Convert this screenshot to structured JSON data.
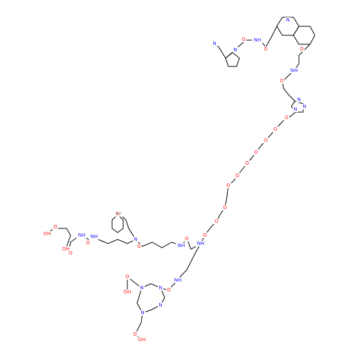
{
  "atoms": [
    "N",
    "O",
    "NH",
    "N",
    "N",
    "O",
    "O",
    "NH",
    "O",
    "N",
    "N",
    "N",
    "O",
    "O",
    "O",
    "O",
    "O",
    "O",
    "O",
    "O",
    "O",
    "O",
    "NH",
    "O",
    "NH",
    "O",
    "N",
    "Br",
    "NH",
    "NH",
    "O",
    "OH",
    "O",
    "OH",
    "O",
    "NH",
    "O",
    "N",
    "N",
    "N",
    "N",
    "O",
    "OH",
    "O",
    "OH"
  ]
}
